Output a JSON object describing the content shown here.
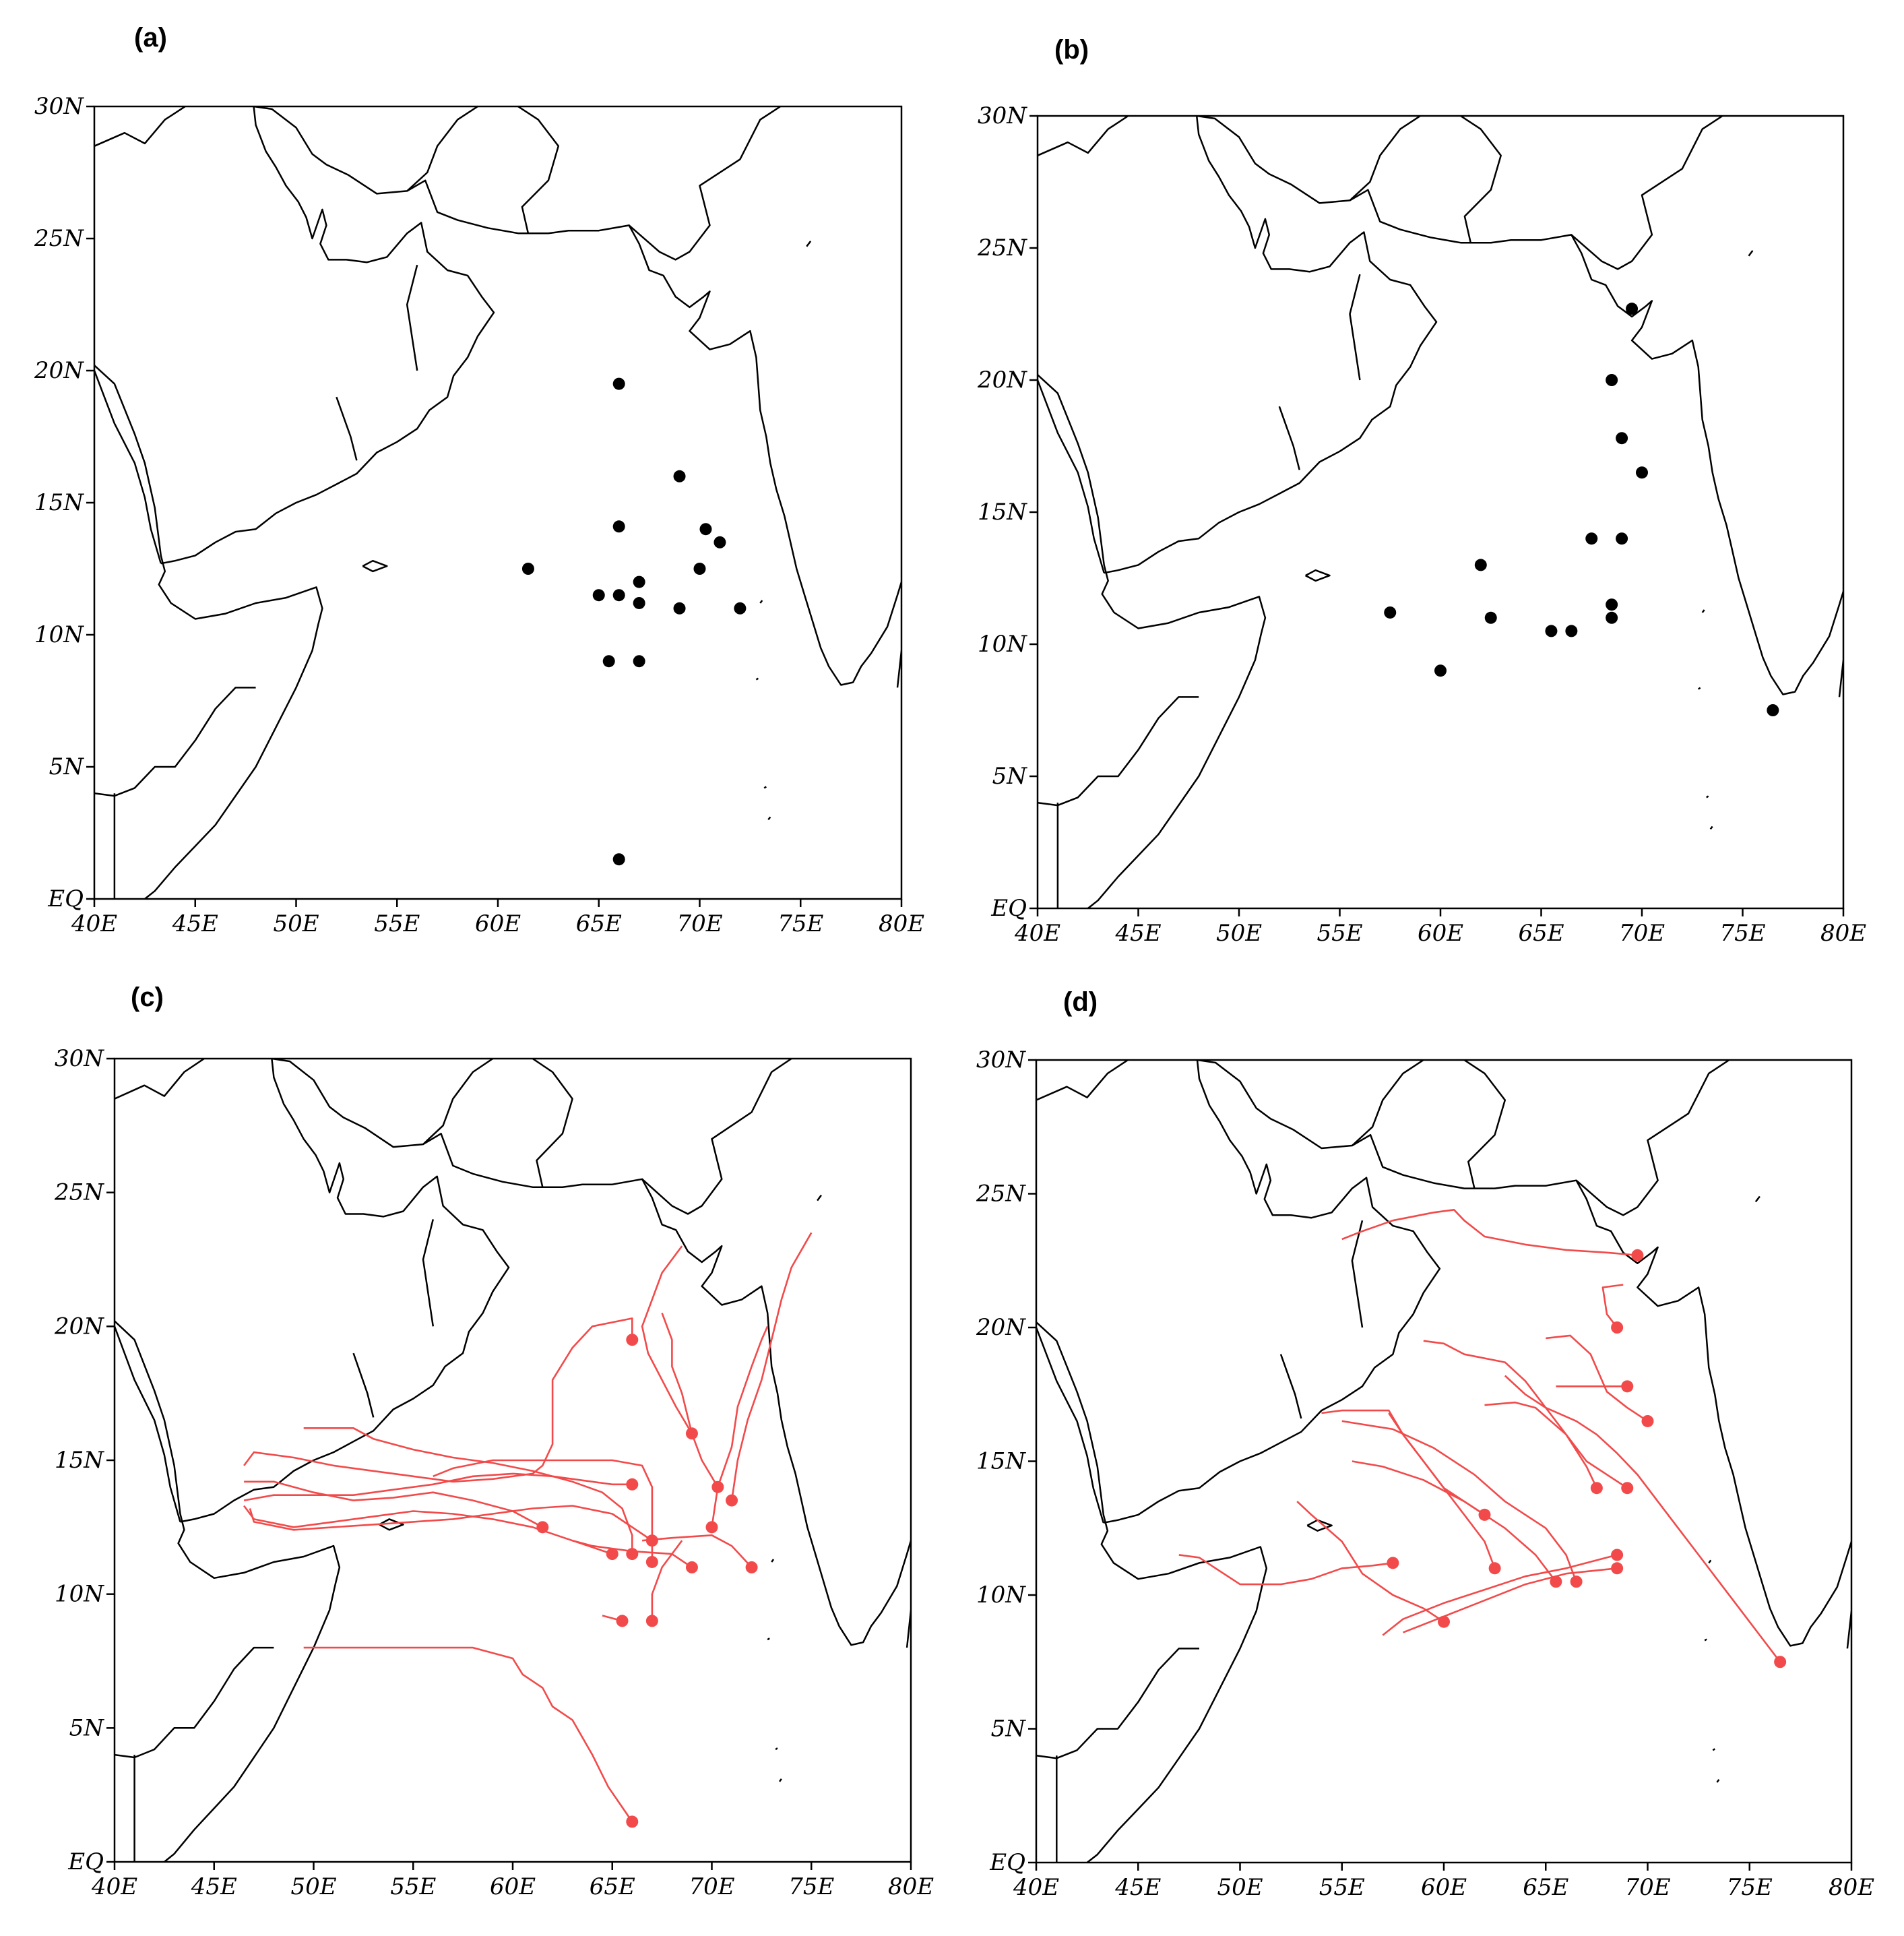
{
  "panels": [
    {
      "label": "(a)",
      "type": "genesis",
      "points": [
        [
          66,
          19.5
        ],
        [
          69,
          16
        ],
        [
          66,
          14.1
        ],
        [
          70.3,
          14
        ],
        [
          71,
          13.5
        ],
        [
          61.5,
          12.5
        ],
        [
          70,
          12.5
        ],
        [
          67,
          12
        ],
        [
          65,
          11.5
        ],
        [
          66,
          11.5
        ],
        [
          67,
          11.2
        ],
        [
          69,
          11
        ],
        [
          72,
          11
        ],
        [
          65.5,
          9
        ],
        [
          67,
          9
        ],
        [
          66,
          1.5
        ]
      ]
    },
    {
      "label": "(b)",
      "type": "genesis",
      "points": [
        [
          69.5,
          22.7
        ],
        [
          68.5,
          20
        ],
        [
          69,
          17.8
        ],
        [
          70,
          16.5
        ],
        [
          67.5,
          14
        ],
        [
          69,
          14
        ],
        [
          62,
          13
        ],
        [
          57.5,
          11.2
        ],
        [
          68.5,
          11.5
        ],
        [
          62.5,
          11
        ],
        [
          68.5,
          11
        ],
        [
          65.5,
          10.5
        ],
        [
          66.5,
          10.5
        ],
        [
          60,
          9
        ],
        [
          76.5,
          7.5
        ]
      ]
    },
    {
      "label": "(c)",
      "type": "tracks",
      "tracks": [
        [
          [
            66,
            19.5
          ],
          [
            66,
            20.3
          ],
          [
            64,
            20
          ],
          [
            63,
            19.2
          ],
          [
            62,
            18
          ],
          [
            62,
            15.6
          ],
          [
            61.5,
            14.8
          ],
          [
            61,
            14.5
          ],
          [
            59,
            14.3
          ],
          [
            57,
            14.2
          ],
          [
            55,
            14.4
          ],
          [
            53,
            14.6
          ],
          [
            51,
            14.8
          ],
          [
            49,
            15.1
          ],
          [
            47,
            15.3
          ],
          [
            46.5,
            14.8
          ]
        ],
        [
          [
            69,
            16
          ],
          [
            68.2,
            17
          ],
          [
            67.5,
            18
          ],
          [
            66.8,
            19
          ],
          [
            66.5,
            20
          ],
          [
            67,
            21
          ],
          [
            67.5,
            22
          ],
          [
            68,
            22.5
          ],
          [
            68.5,
            23
          ]
        ],
        [
          [
            66,
            14.1
          ],
          [
            65,
            14.1
          ],
          [
            64,
            14.2
          ],
          [
            62,
            14.4
          ],
          [
            60,
            14.5
          ],
          [
            58,
            14.4
          ],
          [
            56,
            14.1
          ],
          [
            54,
            13.9
          ],
          [
            52,
            13.7
          ],
          [
            50,
            13.7
          ],
          [
            48,
            13.7
          ],
          [
            46.5,
            13.5
          ]
        ],
        [
          [
            70.3,
            14
          ],
          [
            69.5,
            15
          ],
          [
            69,
            16
          ],
          [
            68.5,
            17.5
          ],
          [
            68,
            18.5
          ],
          [
            68,
            19.5
          ],
          [
            67.5,
            20.5
          ]
        ],
        [
          [
            71,
            13.5
          ],
          [
            71.3,
            15
          ],
          [
            71.8,
            16.5
          ],
          [
            72.5,
            18
          ],
          [
            73,
            19.5
          ],
          [
            73.5,
            21
          ],
          [
            74,
            22.2
          ],
          [
            75,
            23.5
          ]
        ],
        [
          [
            61.5,
            12.5
          ],
          [
            60,
            13.1
          ],
          [
            58,
            13.5
          ],
          [
            56,
            13.8
          ],
          [
            54,
            13.6
          ],
          [
            52,
            13.5
          ],
          [
            50,
            13.8
          ],
          [
            48,
            14.2
          ],
          [
            46.5,
            14.2
          ]
        ],
        [
          [
            70,
            12.5
          ],
          [
            70.3,
            14
          ],
          [
            71,
            15.5
          ],
          [
            71.3,
            17
          ],
          [
            72,
            18.5
          ],
          [
            72.5,
            19.5
          ],
          [
            72.8,
            20
          ]
        ],
        [
          [
            67,
            12
          ],
          [
            65,
            13
          ],
          [
            63,
            13.3
          ],
          [
            61,
            13.2
          ],
          [
            59,
            13
          ],
          [
            57,
            12.8
          ],
          [
            55,
            12.7
          ],
          [
            53,
            12.6
          ],
          [
            51,
            12.5
          ],
          [
            49,
            12.4
          ],
          [
            47,
            12.7
          ],
          [
            46.8,
            13.2
          ]
        ],
        [
          [
            65,
            11.5
          ],
          [
            63,
            12
          ],
          [
            61,
            12.5
          ],
          [
            59,
            12.8
          ],
          [
            57,
            13
          ],
          [
            55,
            13.1
          ],
          [
            53,
            12.9
          ],
          [
            51,
            12.7
          ],
          [
            49,
            12.5
          ],
          [
            47,
            12.8
          ],
          [
            46.5,
            13.3
          ]
        ],
        [
          [
            66,
            11.5
          ],
          [
            66,
            12.2
          ],
          [
            65.5,
            13.2
          ],
          [
            64.5,
            13.8
          ],
          [
            63,
            14.2
          ],
          [
            61,
            14.6
          ],
          [
            59,
            14.9
          ],
          [
            57,
            15.1
          ],
          [
            55,
            15.4
          ],
          [
            53,
            15.8
          ],
          [
            52,
            16.2
          ],
          [
            50,
            16.2
          ],
          [
            49.5,
            16.2
          ]
        ],
        [
          [
            67,
            11.2
          ],
          [
            67,
            12.5
          ],
          [
            67,
            14
          ],
          [
            66.5,
            14.8
          ],
          [
            65,
            15
          ],
          [
            63,
            15
          ],
          [
            61,
            15
          ],
          [
            59,
            15
          ],
          [
            57,
            14.7
          ],
          [
            56,
            14.4
          ]
        ],
        [
          [
            69,
            11
          ],
          [
            68,
            11.5
          ],
          [
            66,
            11.6
          ],
          [
            64,
            11.8
          ],
          [
            63,
            12
          ]
        ],
        [
          [
            72,
            11
          ],
          [
            71,
            11.8
          ],
          [
            70,
            12.2
          ],
          [
            68,
            12.1
          ],
          [
            66.5,
            12
          ]
        ],
        [
          [
            65.5,
            9
          ],
          [
            64.5,
            9.2
          ]
        ],
        [
          [
            67,
            9
          ],
          [
            67,
            10
          ],
          [
            67.5,
            11
          ],
          [
            68.5,
            12
          ]
        ],
        [
          [
            66,
            1.5
          ],
          [
            64.8,
            2.8
          ],
          [
            64,
            4
          ],
          [
            63,
            5.3
          ],
          [
            62,
            5.8
          ],
          [
            61.5,
            6.5
          ],
          [
            60.5,
            7
          ],
          [
            60,
            7.6
          ],
          [
            58,
            8
          ],
          [
            56,
            8
          ],
          [
            54,
            8
          ],
          [
            52,
            8
          ],
          [
            50,
            8
          ],
          [
            49.5,
            8
          ]
        ]
      ],
      "genesis_points": [
        [
          66,
          19.5
        ],
        [
          69,
          16
        ],
        [
          66,
          14.1
        ],
        [
          70.3,
          14
        ],
        [
          71,
          13.5
        ],
        [
          61.5,
          12.5
        ],
        [
          70,
          12.5
        ],
        [
          67,
          12
        ],
        [
          65,
          11.5
        ],
        [
          66,
          11.5
        ],
        [
          67,
          11.2
        ],
        [
          69,
          11
        ],
        [
          72,
          11
        ],
        [
          65.5,
          9
        ],
        [
          67,
          9
        ],
        [
          66,
          1.5
        ]
      ]
    },
    {
      "label": "(d)",
      "type": "tracks",
      "tracks": [
        [
          [
            69.5,
            22.7
          ],
          [
            68,
            22.8
          ],
          [
            66,
            22.9
          ],
          [
            64,
            23.1
          ],
          [
            62,
            23.4
          ],
          [
            61,
            24
          ],
          [
            60.5,
            24.4
          ],
          [
            59.5,
            24.3
          ],
          [
            57.5,
            24
          ],
          [
            56,
            23.6
          ],
          [
            55,
            23.3
          ]
        ],
        [
          [
            68.5,
            20
          ],
          [
            68,
            20.5
          ],
          [
            67.8,
            21.5
          ],
          [
            68.8,
            21.6
          ]
        ],
        [
          [
            69,
            17.8
          ],
          [
            68,
            17.8
          ],
          [
            66,
            17.8
          ],
          [
            65.5,
            17.8
          ]
        ],
        [
          [
            70,
            16.5
          ],
          [
            69,
            17
          ],
          [
            68,
            17.6
          ],
          [
            67.2,
            19
          ],
          [
            66.2,
            19.7
          ],
          [
            65,
            19.6
          ]
        ],
        [
          [
            67.5,
            14
          ],
          [
            67,
            14.8
          ],
          [
            66,
            16
          ],
          [
            65,
            17
          ],
          [
            64,
            18
          ],
          [
            63,
            18.7
          ],
          [
            61,
            19
          ],
          [
            60,
            19.4
          ],
          [
            59,
            19.5
          ]
        ],
        [
          [
            69,
            14
          ],
          [
            68,
            14.5
          ],
          [
            67,
            15
          ],
          [
            66,
            16
          ],
          [
            64.5,
            17
          ],
          [
            63.5,
            17.2
          ],
          [
            62,
            17.1
          ]
        ],
        [
          [
            62,
            13
          ],
          [
            61,
            13.5
          ],
          [
            60,
            14
          ],
          [
            59,
            15
          ],
          [
            58,
            16
          ],
          [
            57.3,
            16.8
          ]
        ],
        [
          [
            57.5,
            11.2
          ],
          [
            56.5,
            11.1
          ],
          [
            55,
            11
          ],
          [
            53.5,
            10.6
          ],
          [
            52,
            10.4
          ],
          [
            50,
            10.4
          ],
          [
            49,
            10.9
          ],
          [
            48,
            11.4
          ],
          [
            47,
            11.5
          ]
        ],
        [
          [
            68.5,
            11.5
          ],
          [
            66,
            11
          ],
          [
            64,
            10.7
          ],
          [
            62,
            10.2
          ],
          [
            60,
            9.7
          ],
          [
            58,
            9.1
          ],
          [
            57,
            8.5
          ]
        ],
        [
          [
            62.5,
            11
          ],
          [
            62,
            12
          ],
          [
            61,
            13
          ],
          [
            60,
            14
          ],
          [
            59,
            15
          ],
          [
            58,
            16
          ],
          [
            57.3,
            16.9
          ],
          [
            55,
            16.9
          ],
          [
            54,
            16.8
          ]
        ],
        [
          [
            68.5,
            11
          ],
          [
            66,
            10.8
          ],
          [
            64,
            10.4
          ],
          [
            62,
            9.8
          ],
          [
            60,
            9.2
          ],
          [
            58,
            8.6
          ]
        ],
        [
          [
            65.5,
            10.5
          ],
          [
            64.5,
            11.5
          ],
          [
            63,
            12.5
          ],
          [
            61,
            13.5
          ],
          [
            59,
            14.3
          ],
          [
            57,
            14.8
          ],
          [
            55.5,
            15
          ]
        ],
        [
          [
            66.5,
            10.5
          ],
          [
            66,
            11.5
          ],
          [
            65,
            12.5
          ],
          [
            64,
            13
          ],
          [
            63,
            13.5
          ],
          [
            61.5,
            14.5
          ],
          [
            59.5,
            15.5
          ],
          [
            57.5,
            16.2
          ],
          [
            55,
            16.5
          ]
        ],
        [
          [
            60,
            9
          ],
          [
            59,
            9.5
          ],
          [
            57.5,
            10
          ],
          [
            56,
            10.8
          ],
          [
            55,
            12
          ],
          [
            53.5,
            13
          ],
          [
            52.8,
            13.5
          ]
        ],
        [
          [
            76.5,
            7.5
          ],
          [
            75.5,
            8.5
          ],
          [
            74.5,
            9.5
          ],
          [
            73.5,
            10.5
          ],
          [
            72.5,
            11.5
          ],
          [
            71.5,
            12.5
          ],
          [
            70.5,
            13.5
          ],
          [
            69.5,
            14.5
          ],
          [
            68.5,
            15.3
          ],
          [
            67.5,
            16
          ],
          [
            66.5,
            16.5
          ],
          [
            65,
            17
          ],
          [
            64,
            17.5
          ],
          [
            63,
            18.2
          ]
        ]
      ],
      "genesis_points": [
        [
          69.5,
          22.7
        ],
        [
          68.5,
          20
        ],
        [
          69,
          17.8
        ],
        [
          70,
          16.5
        ],
        [
          67.5,
          14
        ],
        [
          69,
          14
        ],
        [
          62,
          13
        ],
        [
          57.5,
          11.2
        ],
        [
          68.5,
          11.5
        ],
        [
          62.5,
          11
        ],
        [
          68.5,
          11
        ],
        [
          65.5,
          10.5
        ],
        [
          66.5,
          10.5
        ],
        [
          60,
          9
        ],
        [
          76.5,
          7.5
        ]
      ]
    }
  ],
  "axes": {
    "lon_ticks": [
      "40E",
      "45E",
      "50E",
      "55E",
      "60E",
      "65E",
      "70E",
      "75E",
      "80E"
    ],
    "lat_ticks": [
      "EQ",
      "5N",
      "10N",
      "15N",
      "20N",
      "25N",
      "30N"
    ],
    "lon_range": [
      40,
      80
    ],
    "lat_range": [
      0,
      30
    ]
  },
  "colors": {
    "tracks": "#f24a4a",
    "genesis_a_b": "#000000",
    "coast": "#000000"
  }
}
